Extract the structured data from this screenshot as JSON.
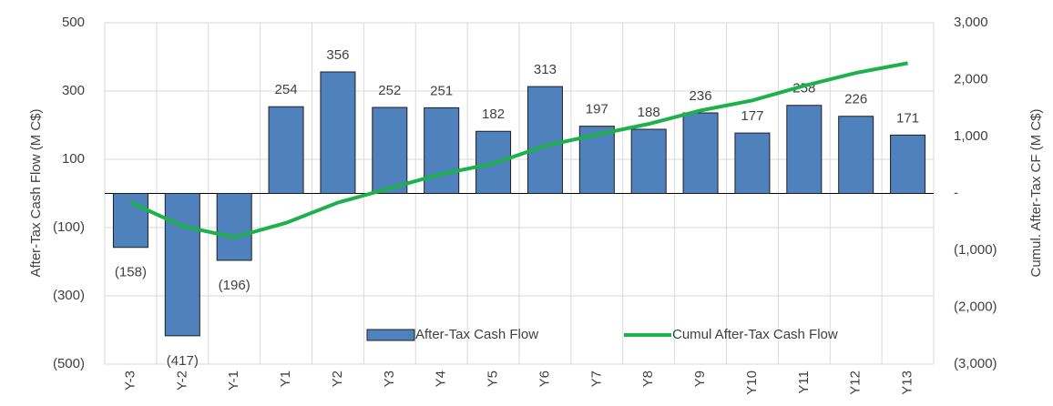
{
  "chart_data": {
    "type": "bar_line",
    "categories": [
      "Y-3",
      "Y-2",
      "Y-1",
      "Y1",
      "Y2",
      "Y3",
      "Y4",
      "Y5",
      "Y6",
      "Y7",
      "Y8",
      "Y9",
      "Y10",
      "Y11",
      "Y12",
      "Y13"
    ],
    "series": [
      {
        "name": "After-Tax Cash Flow",
        "color": "#4f81bd",
        "type": "bar",
        "values": [
          -158,
          -417,
          -196,
          254,
          356,
          252,
          251,
          182,
          313,
          197,
          188,
          236,
          177,
          258,
          226,
          171
        ],
        "value_labels": [
          "(158)",
          "(417)",
          "(196)",
          "254",
          "356",
          "252",
          "251",
          "182",
          "313",
          "197",
          "188",
          "236",
          "177",
          "258",
          "226",
          "171"
        ]
      },
      {
        "name": "Cumul After-Tax Cash Flow",
        "color": "#1db14b",
        "type": "line",
        "axis": "y2",
        "values": [
          -158,
          -575,
          -771,
          -517,
          -161,
          91,
          342,
          524,
          837,
          1034,
          1222,
          1458,
          1635,
          1893,
          2119,
          2290
        ]
      }
    ],
    "ylabel": "After-Tax Cash Flow (M C$)",
    "y2label": "Cumul. After-Tax CF (M C$)",
    "ylim": [
      -500,
      500
    ],
    "yticks": [
      {
        "value": -500,
        "label": "(500)"
      },
      {
        "value": -300,
        "label": "(300)"
      },
      {
        "value": -100,
        "label": "(100)"
      },
      100,
      300,
      500
    ],
    "y2lim": [
      -3000,
      3000
    ],
    "y2ticks": [
      {
        "value": -3000,
        "label": "(3,000)"
      },
      {
        "value": -2000,
        "label": "(2,000)"
      },
      {
        "value": -1000,
        "label": "(1,000)"
      },
      {
        "value": 0,
        "label": "-"
      },
      {
        "value": 1000,
        "label": "1,000"
      },
      {
        "value": 2000,
        "label": "2,000"
      },
      {
        "value": 3000,
        "label": "3,000"
      }
    ],
    "grid": true,
    "legend": "bottom"
  }
}
